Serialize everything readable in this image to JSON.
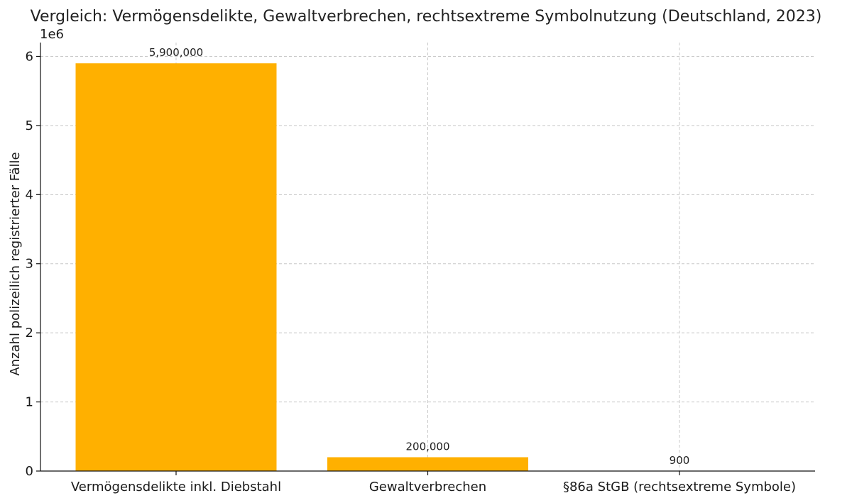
{
  "chart_data": {
    "type": "bar",
    "title": "Vergleich: Vermögensdelikte, Gewaltverbrechen, rechtsextreme Symbolnutzung (Deutschland, 2023)",
    "xlabel": "",
    "ylabel": "Anzahl polizeilich registrierter Fälle",
    "y_multiplier_label": "1e6",
    "categories": [
      "Vermögensdelikte inkl. Diebstahl",
      "Gewaltverbrechen",
      "§86a StGB (rechtsextreme Symbole)"
    ],
    "values": [
      5900000,
      200000,
      900
    ],
    "data_labels": [
      "5,900,000",
      "200,000",
      "900"
    ],
    "ylim": [
      0,
      6200000
    ],
    "yticks": [
      0,
      1000000,
      2000000,
      3000000,
      4000000,
      5000000,
      6000000
    ],
    "ytick_labels": [
      "0",
      "1",
      "2",
      "3",
      "4",
      "5",
      "6"
    ],
    "bar_color": "#FFB000",
    "grid": true,
    "legend": "none"
  }
}
